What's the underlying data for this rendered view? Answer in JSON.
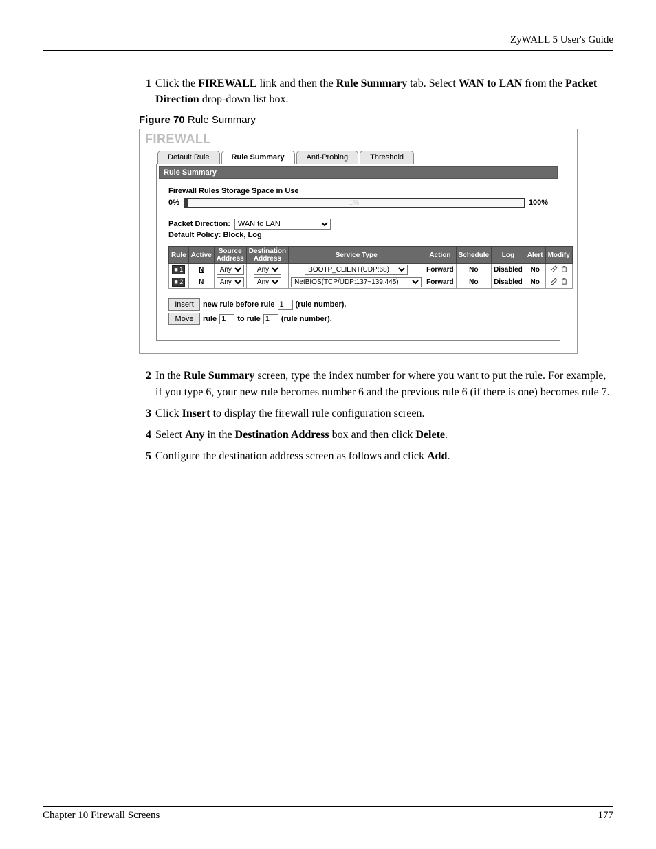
{
  "header": {
    "guide": "ZyWALL 5 User's Guide"
  },
  "steps": {
    "s1_pre": "Click the ",
    "s1_b1": "FIREWALL",
    "s1_mid1": " link and then the ",
    "s1_b2": "Rule Summary",
    "s1_mid2": " tab. Select ",
    "s1_b3": "WAN to LAN",
    "s1_mid3": " from the ",
    "s1_b4": "Packet Direction",
    "s1_end": " drop-down list box.",
    "s2_pre": "In the ",
    "s2_b1": "Rule Summary",
    "s2_end": " screen, type the index number for where you want to put the rule. For example, if you type 6, your new rule becomes number 6 and the previous rule 6 (if there is one) becomes rule 7.",
    "s3_pre": "Click ",
    "s3_b1": "Insert",
    "s3_end": " to display the firewall rule configuration screen.",
    "s4_pre": "Select ",
    "s4_b1": "Any",
    "s4_mid1": " in the ",
    "s4_b2": "Destination Address",
    "s4_mid2": " box and then click ",
    "s4_b3": "Delete",
    "s4_end": ".",
    "s5_pre": "Configure the destination address screen as follows and click ",
    "s5_b1": "Add",
    "s5_end": "."
  },
  "figcap": {
    "label": "Figure 70",
    "title": "   Rule Summary"
  },
  "shot": {
    "title": "FIREWALL",
    "tabs": {
      "t0": "Default Rule",
      "t1": "Rule Summary",
      "t2": "Anti-Probing",
      "t3": "Threshold"
    },
    "section_header": "Rule Summary",
    "storage_title": "Firewall Rules Storage Space in Use",
    "pct_left": "0%",
    "pct_right": "100%",
    "bar_text": "1%",
    "bar_fill_pct": 1,
    "dir_label": "Packet Direction:",
    "dir_value": "WAN to LAN",
    "policy": "Default Policy: Block, Log",
    "th": {
      "rule": "Rule",
      "active": "Active",
      "src": "Source Address",
      "dst": "Destination Address",
      "svc": "Service Type",
      "action": "Action",
      "sched": "Schedule",
      "log": "Log",
      "alert": "Alert",
      "modify": "Modify"
    },
    "rows": [
      {
        "badge": "■ 1",
        "active": "N",
        "src": "Any",
        "dst": "Any",
        "svc": "BOOTP_CLIENT(UDP:68)",
        "action": "Forward",
        "sched": "No",
        "log": "Disabled",
        "alert": "No"
      },
      {
        "badge": "■ 2",
        "active": "N",
        "src": "Any",
        "dst": "Any",
        "svc": "NetBIOS(TCP/UDP:137~139,445)",
        "action": "Forward",
        "sched": "No",
        "log": "Disabled",
        "alert": "No"
      }
    ],
    "btn_insert": "Insert",
    "btn_move": "Move",
    "insert_text1": "new rule before rule",
    "insert_val": "1",
    "insert_text2": "(rule number).",
    "move_text1": "rule",
    "move_val1": "1",
    "move_text2": "to rule",
    "move_val2": "1",
    "move_text3": "(rule number)."
  },
  "footer": {
    "chapter": "Chapter 10 Firewall Screens",
    "page": "177"
  },
  "colors": {
    "tab_bg": "#e7e7e7",
    "hdr_bg": "#6a6a6a",
    "bar_fill": "#3a3a3a",
    "title_gray": "#bdbdbd"
  }
}
